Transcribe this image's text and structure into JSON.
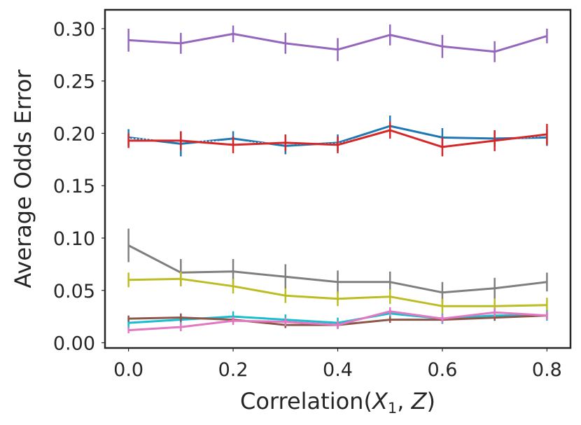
{
  "chart_data": {
    "type": "line",
    "title": "",
    "xlabel_prefix": "Correlation(",
    "xlabel_var1": "X",
    "xlabel_sub": "1",
    "xlabel_mid": ", ",
    "xlabel_var2": "Z",
    "xlabel_suffix": ")",
    "ylabel": "Average Odds Error",
    "xlim": [
      -0.045,
      0.845
    ],
    "ylim": [
      -0.005,
      0.318
    ],
    "x": [
      0.0,
      0.1,
      0.2,
      0.3,
      0.4,
      0.5,
      0.6,
      0.7,
      0.8
    ],
    "xticks": [
      "0.0",
      "0.2",
      "0.4",
      "0.6",
      "0.8"
    ],
    "yticks": [
      "0.00",
      "0.05",
      "0.10",
      "0.15",
      "0.20",
      "0.25",
      "0.30"
    ],
    "series": [
      {
        "name": "purple",
        "color": "#9467bd",
        "values": [
          0.289,
          0.286,
          0.295,
          0.286,
          0.28,
          0.294,
          0.283,
          0.278,
          0.293
        ],
        "errors": [
          0.011,
          0.01,
          0.008,
          0.01,
          0.011,
          0.01,
          0.011,
          0.01,
          0.007
        ]
      },
      {
        "name": "blue",
        "color": "#1f77b4",
        "values": [
          0.196,
          0.19,
          0.195,
          0.188,
          0.191,
          0.207,
          0.196,
          0.195,
          0.196
        ],
        "errors": [
          0.008,
          0.012,
          0.007,
          0.008,
          0.008,
          0.01,
          0.009,
          0.008,
          0.008
        ]
      },
      {
        "name": "black-dotted",
        "color": "#ffffff",
        "dash": true,
        "values": [
          0.195,
          0.193,
          0.192,
          0.19,
          0.19,
          0.204,
          0.191,
          0.193,
          0.198
        ],
        "errors": []
      },
      {
        "name": "red",
        "color": "#d62728",
        "values": [
          0.193,
          0.193,
          0.189,
          0.191,
          0.189,
          0.203,
          0.187,
          0.193,
          0.199
        ],
        "errors": [
          0.007,
          0.009,
          0.008,
          0.008,
          0.008,
          0.008,
          0.009,
          0.01,
          0.01
        ]
      },
      {
        "name": "gray",
        "color": "#7f7f7f",
        "values": [
          0.093,
          0.067,
          0.068,
          0.063,
          0.058,
          0.058,
          0.048,
          0.052,
          0.058
        ],
        "errors": [
          0.016,
          0.013,
          0.012,
          0.012,
          0.011,
          0.01,
          0.01,
          0.01,
          0.009
        ]
      },
      {
        "name": "olive",
        "color": "#bcbd22",
        "values": [
          0.06,
          0.061,
          0.054,
          0.045,
          0.042,
          0.044,
          0.035,
          0.035,
          0.036
        ],
        "errors": [
          0.007,
          0.007,
          0.007,
          0.007,
          0.007,
          0.007,
          0.007,
          0.007,
          0.007
        ]
      },
      {
        "name": "cyan",
        "color": "#17becf",
        "values": [
          0.019,
          0.022,
          0.025,
          0.022,
          0.019,
          0.028,
          0.023,
          0.026,
          0.026
        ],
        "errors": [
          0.005,
          0.005,
          0.005,
          0.005,
          0.005,
          0.005,
          0.005,
          0.005,
          0.005
        ]
      },
      {
        "name": "brown",
        "color": "#8c564b",
        "values": [
          0.023,
          0.024,
          0.022,
          0.017,
          0.017,
          0.022,
          0.022,
          0.024,
          0.026
        ],
        "errors": [
          0.003,
          0.004,
          0.003,
          0.003,
          0.003,
          0.003,
          0.003,
          0.003,
          0.003
        ]
      },
      {
        "name": "pink",
        "color": "#e377c2",
        "values": [
          0.012,
          0.015,
          0.021,
          0.02,
          0.017,
          0.03,
          0.023,
          0.029,
          0.026
        ],
        "errors": [
          0.003,
          0.004,
          0.004,
          0.004,
          0.004,
          0.004,
          0.004,
          0.004,
          0.004
        ]
      }
    ]
  }
}
